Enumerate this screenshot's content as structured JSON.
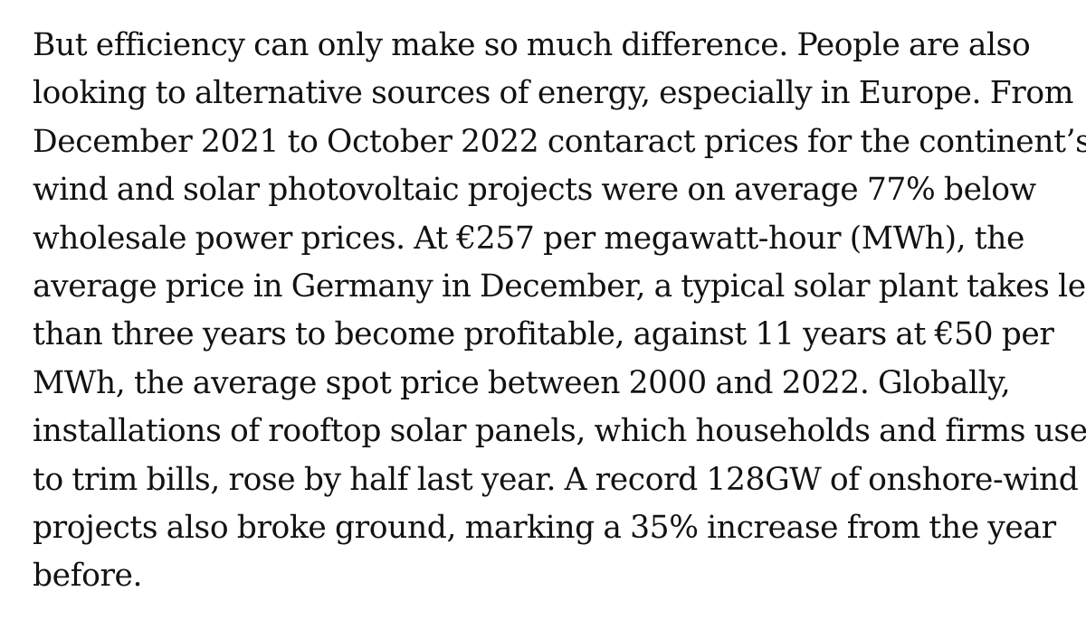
{
  "article": {
    "paragraph_lines": [
      "But efficiency can only make so much difference. People are also",
      "looking to alternative sources of energy, especially in Europe. From",
      "December 2021 to October 2022 contaract prices for the continent’s",
      "wind and solar photovoltaic projects were on average 77% below",
      "wholesale power prices. At €257 per megawatt-hour (MWh), the",
      "average price in Germany in December, a typical solar plant takes less",
      "than three years to become profitable, against 11 years at €50 per",
      "MWh, the average spot price between 2000 and 2022. Globally,",
      "installations of rooftop solar panels, which households and firms use",
      "to trim bills, rose by half last year. A record 128GW of onshore-wind",
      "projects also broke ground, marking a 35% increase from the year",
      "before."
    ]
  }
}
